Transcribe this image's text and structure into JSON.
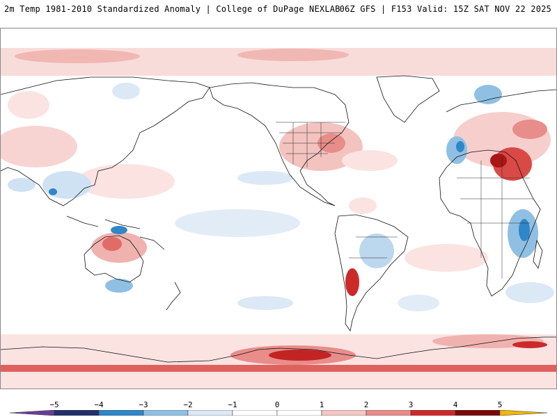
{
  "header": {
    "left_title": "2m Temp 1981-2010 Standardized Anomaly | College of DuPage NEXLAB",
    "right_title": "06Z GFS | F153 Valid: 15Z SAT NOV 22 2025"
  },
  "map": {
    "projection": "Equirectangular, Pacific-centered",
    "variable": "2m temperature standardized anomaly"
  },
  "colorbar": {
    "labels": [
      "−5",
      "−4",
      "−3",
      "−2",
      "−1",
      "0",
      "1",
      "2",
      "3",
      "4",
      "5"
    ],
    "colors": [
      "#6a3d9a",
      "#22306a",
      "#2f86c8",
      "#8fc0e3",
      "#dbe8f5",
      "#ffffff",
      "#ffffff",
      "#f4c7c4",
      "#e88d8a",
      "#cc2a2a",
      "#7a0a0a",
      "#f0b800"
    ]
  }
}
